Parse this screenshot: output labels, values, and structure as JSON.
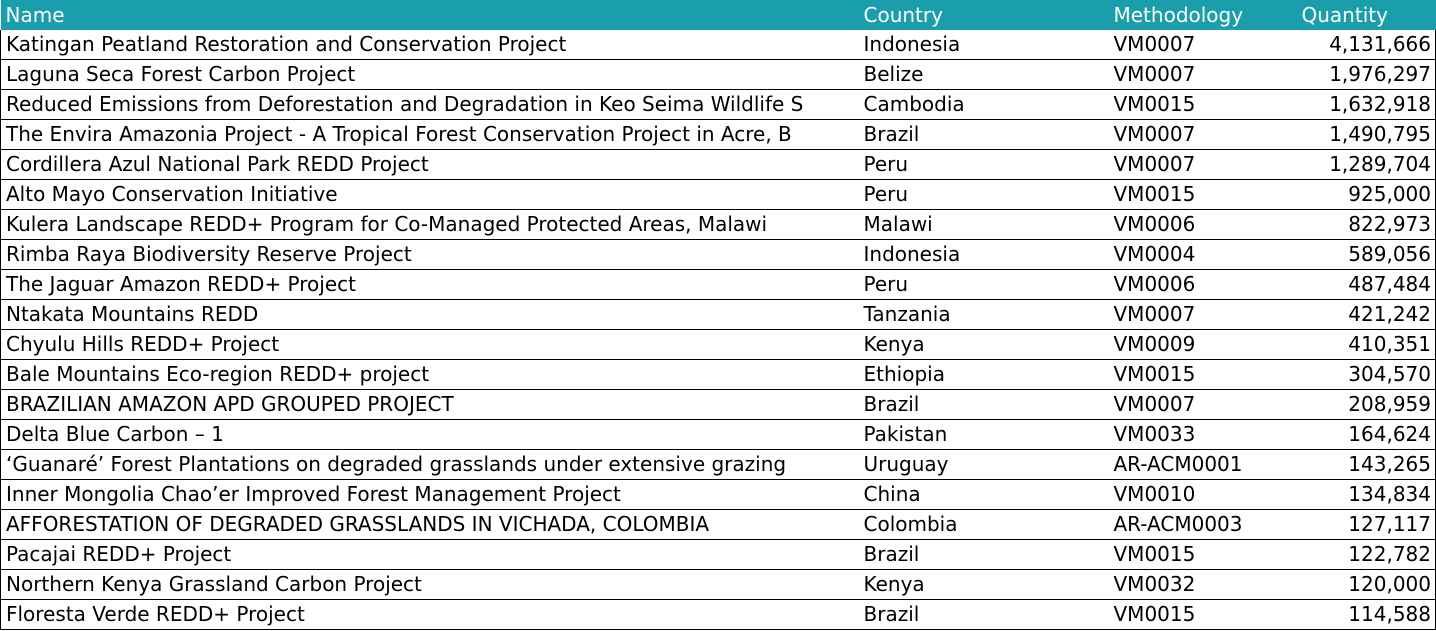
{
  "table": {
    "columns": [
      "Name",
      "Country",
      "Methodology",
      "Quantity"
    ],
    "rows": [
      {
        "name": "Katingan Peatland Restoration and Conservation Project",
        "country": "Indonesia",
        "methodology": "VM0007",
        "quantity": "4,131,666"
      },
      {
        "name": "Laguna Seca Forest Carbon Project",
        "country": "Belize",
        "methodology": "VM0007",
        "quantity": "1,976,297"
      },
      {
        "name": "Reduced Emissions from Deforestation and Degradation in Keo Seima Wildlife S",
        "country": "Cambodia",
        "methodology": "VM0015",
        "quantity": "1,632,918"
      },
      {
        "name": "The Envira Amazonia Project - A Tropical Forest Conservation Project in Acre, B",
        "country": "Brazil",
        "methodology": "VM0007",
        "quantity": "1,490,795"
      },
      {
        "name": "Cordillera Azul National Park REDD Project",
        "country": "Peru",
        "methodology": "VM0007",
        "quantity": "1,289,704"
      },
      {
        "name": "Alto Mayo Conservation Initiative",
        "country": "Peru",
        "methodology": "VM0015",
        "quantity": "925,000"
      },
      {
        "name": "Kulera Landscape REDD+ Program for Co-Managed Protected Areas, Malawi",
        "country": "Malawi",
        "methodology": "VM0006",
        "quantity": "822,973"
      },
      {
        "name": "Rimba Raya Biodiversity Reserve Project",
        "country": "Indonesia",
        "methodology": "VM0004",
        "quantity": "589,056"
      },
      {
        "name": "The Jaguar Amazon REDD+ Project",
        "country": "Peru",
        "methodology": "VM0006",
        "quantity": "487,484"
      },
      {
        "name": "Ntakata Mountains REDD",
        "country": "Tanzania",
        "methodology": "VM0007",
        "quantity": "421,242"
      },
      {
        "name": "Chyulu Hills REDD+ Project",
        "country": "Kenya",
        "methodology": "VM0009",
        "quantity": "410,351"
      },
      {
        "name": "Bale Mountains Eco-region REDD+ project",
        "country": "Ethiopia",
        "methodology": "VM0015",
        "quantity": "304,570"
      },
      {
        "name": "BRAZILIAN AMAZON APD GROUPED PROJECT",
        "country": "Brazil",
        "methodology": "VM0007",
        "quantity": "208,959"
      },
      {
        "name": "Delta Blue Carbon – 1",
        "country": "Pakistan",
        "methodology": "VM0033",
        "quantity": "164,624"
      },
      {
        "name": "‘Guanaré’ Forest Plantations on degraded grasslands under extensive grazing",
        "country": "Uruguay",
        "methodology": "AR-ACM0001",
        "quantity": "143,265"
      },
      {
        "name": "Inner Mongolia Chao’er Improved Forest Management Project",
        "country": "China",
        "methodology": "VM0010",
        "quantity": "134,834"
      },
      {
        "name": "AFFORESTATION OF DEGRADED GRASSLANDS IN VICHADA, COLOMBIA",
        "country": "Colombia",
        "methodology": "AR-ACM0003",
        "quantity": "127,117"
      },
      {
        "name": "Pacajai REDD+ Project",
        "country": "Brazil",
        "methodology": "VM0015",
        "quantity": "122,782"
      },
      {
        "name": "Northern Kenya Grassland Carbon Project",
        "country": "Kenya",
        "methodology": "VM0032",
        "quantity": "120,000"
      },
      {
        "name": "Floresta Verde REDD+ Project",
        "country": "Brazil",
        "methodology": "VM0015",
        "quantity": "114,588"
      }
    ]
  },
  "colors": {
    "header_bg": "#1a9eab",
    "header_text": "#ffffff",
    "row_border": "#000000"
  }
}
